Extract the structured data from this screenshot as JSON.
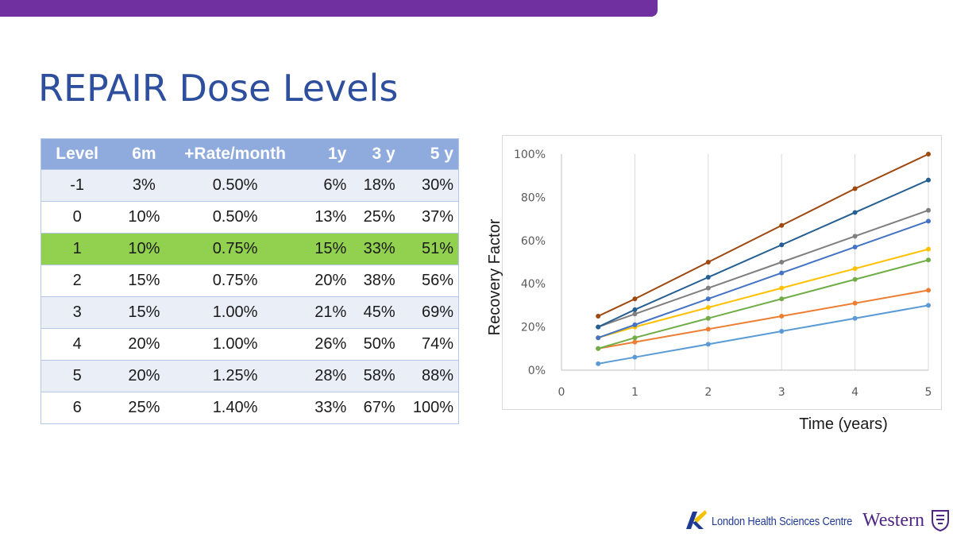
{
  "slide": {
    "title": "REPAIR Dose Levels"
  },
  "table": {
    "headers": [
      "Level",
      "6m",
      "+Rate/month",
      "1y",
      "3 y",
      "5 y"
    ],
    "rows": [
      [
        "-1",
        "3%",
        "0.50%",
        "6%",
        "18%",
        "30%"
      ],
      [
        "0",
        "10%",
        "0.50%",
        "13%",
        "25%",
        "37%"
      ],
      [
        "1",
        "10%",
        "0.75%",
        "15%",
        "33%",
        "51%"
      ],
      [
        "2",
        "15%",
        "0.75%",
        "20%",
        "38%",
        "56%"
      ],
      [
        "3",
        "15%",
        "1.00%",
        "21%",
        "45%",
        "69%"
      ],
      [
        "4",
        "20%",
        "1.00%",
        "26%",
        "50%",
        "74%"
      ],
      [
        "5",
        "20%",
        "1.25%",
        "28%",
        "58%",
        "88%"
      ],
      [
        "6",
        "25%",
        "1.40%",
        "33%",
        "67%",
        "100%"
      ]
    ],
    "highlight_row_color": "#92d050",
    "header_color": "#8faadc"
  },
  "chart_data": {
    "type": "line",
    "title": "",
    "xlabel": "Time (years)",
    "ylabel": "Recovery Factor",
    "xlim": [
      0,
      5
    ],
    "ylim": [
      0,
      100
    ],
    "xticks": [
      "0",
      "1",
      "2",
      "3",
      "4",
      "5"
    ],
    "yticks": [
      "0%",
      "20%",
      "40%",
      "60%",
      "80%",
      "100%"
    ],
    "grid": "vertical",
    "legend": "none",
    "x": [
      0.5,
      1,
      2,
      3,
      4,
      5
    ],
    "series": [
      {
        "color": "#5b9bd5",
        "values": [
          3,
          6,
          12,
          18,
          24,
          30
        ]
      },
      {
        "color": "#ed7d31",
        "values": [
          10,
          13,
          19,
          25,
          31,
          37
        ]
      },
      {
        "color": "#70ad47",
        "values": [
          10,
          15,
          24,
          33,
          42,
          51
        ]
      },
      {
        "color": "#ffc000",
        "values": [
          15,
          20,
          29,
          38,
          47,
          56
        ]
      },
      {
        "color": "#4472c4",
        "values": [
          15,
          21,
          33,
          45,
          57,
          69
        ]
      },
      {
        "color": "#7f7f7f",
        "values": [
          20,
          26,
          38,
          50,
          62,
          74
        ]
      },
      {
        "color": "#255e91",
        "values": [
          20,
          28,
          43,
          58,
          73,
          88
        ]
      },
      {
        "color": "#9e480e",
        "values": [
          25,
          33,
          50,
          67,
          84,
          100
        ]
      }
    ]
  },
  "footer": {
    "logo_lhsc": "London Health Sciences Centre",
    "logo_western": "Western",
    "colors": {
      "lhsc": "#1f3a93",
      "western": "#4f2683"
    }
  }
}
